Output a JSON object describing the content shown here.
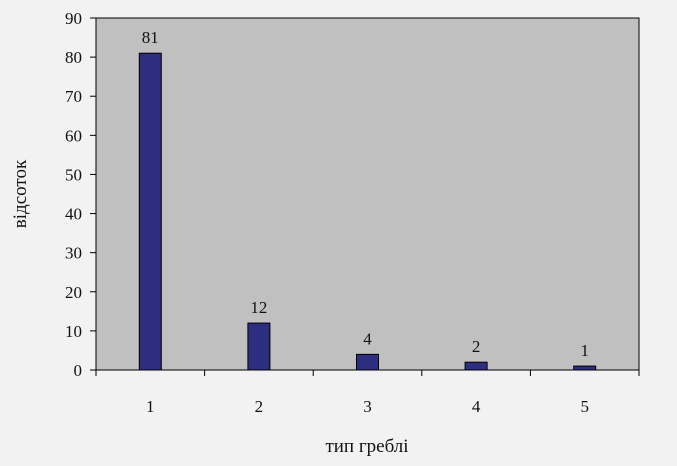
{
  "chart_data": {
    "type": "bar",
    "title": "",
    "xlabel": "тип греблі",
    "ylabel": "відсоток",
    "categories": [
      "1",
      "2",
      "3",
      "4",
      "5"
    ],
    "values": [
      81,
      12,
      4,
      2,
      1
    ],
    "data_labels": [
      "81",
      "12",
      "4",
      "2",
      "1"
    ],
    "yticks": [
      0,
      10,
      20,
      30,
      40,
      50,
      60,
      70,
      80,
      90
    ],
    "ylim": [
      0,
      90
    ],
    "grid": false,
    "legend": "none",
    "colors": {
      "plot_background": "#c0c0c0",
      "figure_background": "#f2f2f2",
      "bar_fill": "#2e2e80",
      "bar_stroke": "#000000"
    }
  }
}
